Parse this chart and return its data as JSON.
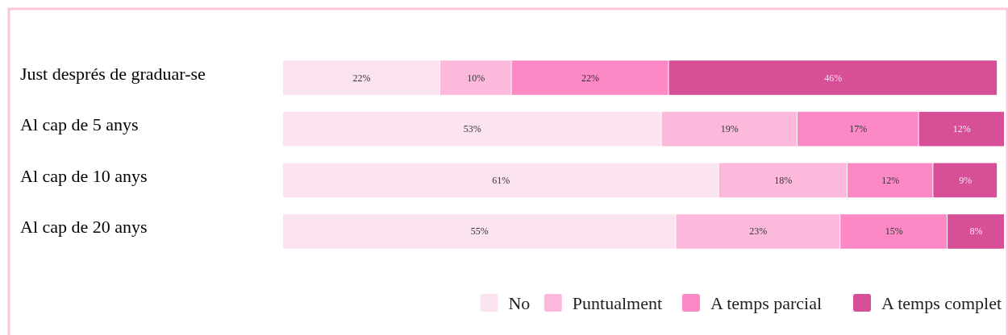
{
  "chart_data": {
    "type": "bar",
    "orientation": "horizontal",
    "stacked": true,
    "categories": [
      "Just després de graduar-se",
      "Al cap de 5 anys",
      "Al cap de 10 anys",
      "Al cap de 20 anys"
    ],
    "xlim": [
      0,
      101
    ],
    "tick_labels": "y",
    "legend": "bottom right",
    "series": [
      {
        "name": "No",
        "color": "#fbe3f0",
        "values": [
          22,
          53,
          61,
          55
        ],
        "value_labels": [
          "22%",
          "53%",
          "61%",
          "55%"
        ]
      },
      {
        "name": "Puntualment",
        "color": "#fdb9dc",
        "values": [
          10,
          19,
          18,
          23
        ],
        "value_labels": [
          "10%",
          "19%",
          "18%",
          "23%"
        ]
      },
      {
        "name": "A temps parcial",
        "color": "#fd88c6",
        "values": [
          22,
          17,
          12,
          15
        ],
        "value_labels": [
          "22%",
          "17%",
          "12%",
          "15%"
        ]
      },
      {
        "name": "A temps complet",
        "color": "#d64f97",
        "values": [
          46,
          12,
          9,
          8
        ],
        "value_labels": [
          "46%",
          "12%",
          "9%",
          "8%"
        ]
      }
    ]
  }
}
